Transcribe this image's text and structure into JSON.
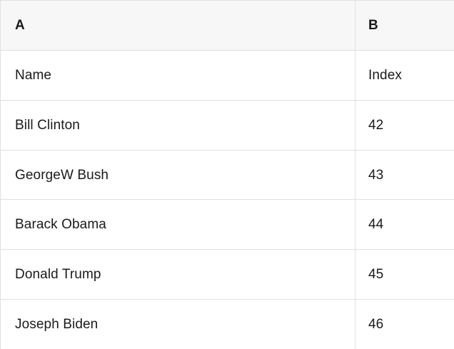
{
  "colors": {
    "header_bg": "#f7f7f7",
    "grid_line": "#e0e0e0",
    "text": "#1a1a1a"
  },
  "table": {
    "column_headers": [
      "A",
      "B"
    ],
    "rows": [
      {
        "A": "Name",
        "B": "Index"
      },
      {
        "A": "Bill Clinton",
        "B": "42"
      },
      {
        "A": "GeorgeW Bush",
        "B": "43"
      },
      {
        "A": "Barack Obama",
        "B": "44"
      },
      {
        "A": "Donald Trump",
        "B": "45"
      },
      {
        "A": "Joseph Biden",
        "B": "46"
      }
    ]
  }
}
